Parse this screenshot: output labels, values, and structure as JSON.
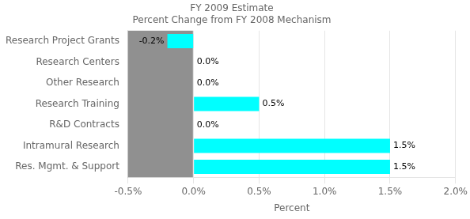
{
  "chart_data": {
    "type": "bar",
    "orientation": "horizontal",
    "title": "FY 2009 Estimate\nPercent Change from FY 2008 Mechanism",
    "xlabel": "Percent",
    "categories": [
      "Research Project Grants",
      "Research Centers",
      "Other Research",
      "Research Training",
      "R&D Contracts",
      "Intramural Research",
      "Res. Mgmt. & Support"
    ],
    "values": [
      -0.2,
      0.0,
      0.0,
      0.5,
      0.0,
      1.5,
      1.5
    ],
    "value_labels": [
      "-0.2%",
      "0.0%",
      "0.0%",
      "0.5%",
      "0.0%",
      "1.5%",
      "1.5%"
    ],
    "data_labels": true,
    "colors": [
      "#00FFFF",
      "#008B8B",
      "#008B8B",
      "#00FFFF",
      "#008B8B",
      "#00FFFF",
      "#00FFFF"
    ],
    "xlim": [
      -0.5,
      2.0
    ],
    "xticks": [
      {
        "value": -0.5,
        "label": "-0.5%"
      },
      {
        "value": 0.0,
        "label": "0.0%"
      },
      {
        "value": 0.5,
        "label": "0.5%"
      },
      {
        "value": 1.0,
        "label": "1.0%"
      },
      {
        "value": 1.5,
        "label": "1.5%"
      },
      {
        "value": 2.0,
        "label": "2.0%"
      }
    ],
    "shaded_range": [
      -0.5,
      -0.005
    ],
    "shaded_color": "#909090",
    "grid": true
  }
}
